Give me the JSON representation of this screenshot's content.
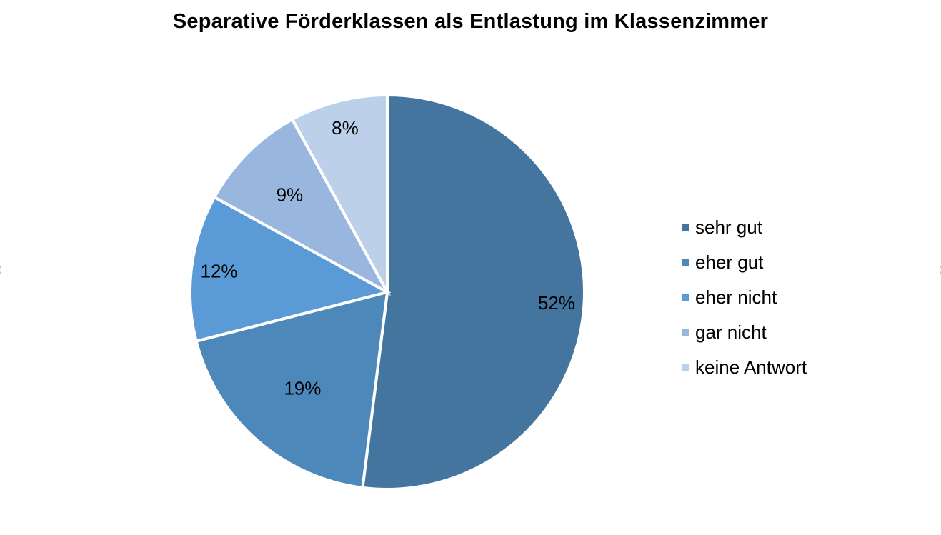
{
  "chart_data": {
    "type": "pie",
    "title": "Separative Förderklassen als Entlastung im Klassenzimmer",
    "categories": [
      "sehr gut",
      "eher gut",
      "eher nicht",
      "gar nicht",
      "keine Antwort"
    ],
    "values": [
      52,
      19,
      12,
      9,
      8
    ],
    "data_labels": [
      "52%",
      "19%",
      "12%",
      "9%",
      "8%"
    ],
    "colors": [
      "#44759f",
      "#4d88ba",
      "#5a9ad6",
      "#99b7de",
      "#bcd0ea"
    ],
    "legend": {
      "placement": "right",
      "entries": [
        "sehr gut",
        "eher gut",
        "eher nicht",
        "gar nicht",
        "keine Antwort"
      ]
    },
    "start_angle": "12 o'clock",
    "direction": "clockwise"
  }
}
